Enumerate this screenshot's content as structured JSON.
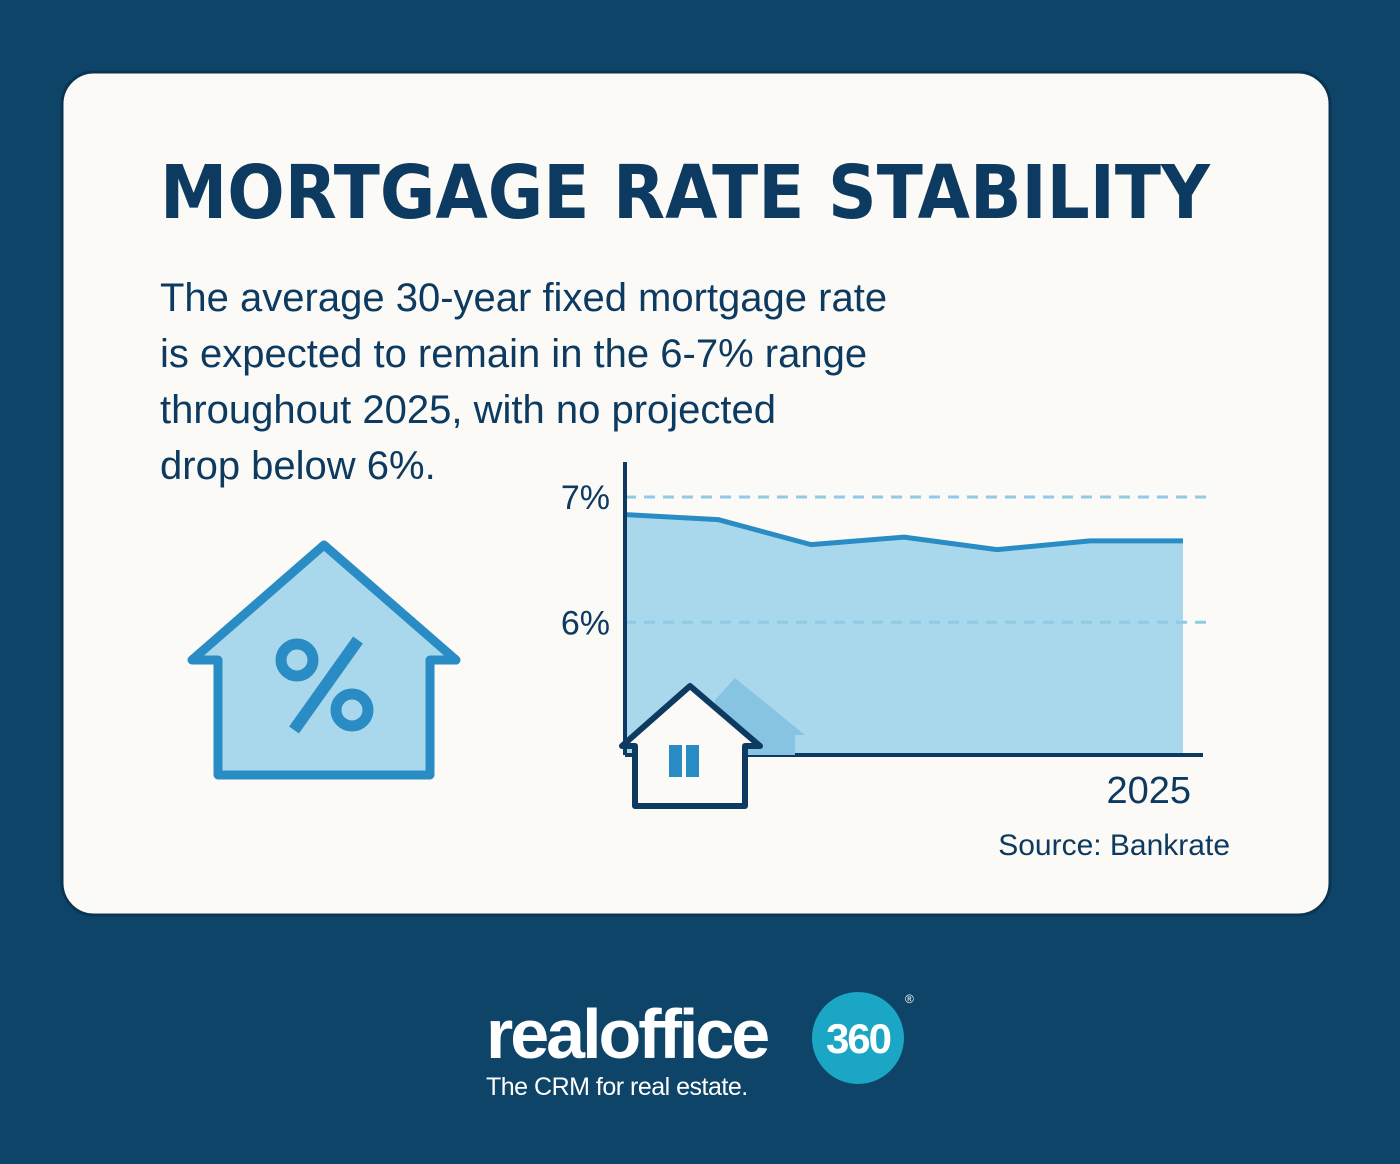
{
  "chart_data": {
    "type": "area",
    "title": "MORTGAGE RATE STABILITY",
    "description": [
      "The average 30-year fixed mortgage rate",
      "is expected to remain in the 6-7% range",
      "throughout 2025, with no projected",
      "drop below 6%."
    ],
    "categories": [
      null,
      null,
      null,
      null,
      null,
      null,
      "2025"
    ],
    "values": [
      6.86,
      6.82,
      6.62,
      6.68,
      6.58,
      6.65,
      6.65
    ],
    "color": "#2a8cc4",
    "fill_color": "#a9d8ec",
    "ylim": [
      4.94,
      7.28
    ],
    "yticks": [
      {
        "value": 6,
        "label": "6%"
      },
      {
        "value": 7,
        "label": "7%"
      }
    ],
    "grid": true,
    "source": "Source: Bankrate"
  },
  "footer": {
    "brand": "realoffice",
    "badge": "360",
    "mark": "®",
    "tagline": "The CRM for real estate."
  }
}
